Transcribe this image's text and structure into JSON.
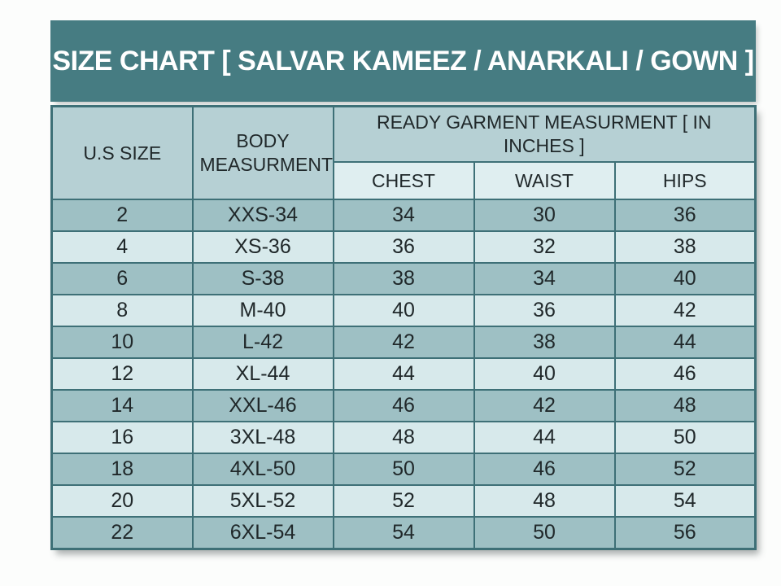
{
  "chart_data": {
    "type": "table",
    "title": "SIZE CHART [ SALVAR KAMEEZ / ANARKALI / GOWN ]",
    "header": {
      "col1": "U.S SIZE",
      "col2": "BODY MEASURMENT",
      "group": "READY GARMENT MEASURMENT [ IN INCHES ]",
      "group_cols": [
        "CHEST",
        "WAIST",
        "HIPS"
      ]
    },
    "rows": [
      [
        "2",
        "XXS-34",
        "34",
        "30",
        "36"
      ],
      [
        "4",
        "XS-36",
        "36",
        "32",
        "38"
      ],
      [
        "6",
        "S-38",
        "38",
        "34",
        "40"
      ],
      [
        "8",
        "M-40",
        "40",
        "36",
        "42"
      ],
      [
        "10",
        "L-42",
        "42",
        "38",
        "44"
      ],
      [
        "12",
        "XL-44",
        "44",
        "40",
        "46"
      ],
      [
        "14",
        "XXL-46",
        "46",
        "42",
        "48"
      ],
      [
        "16",
        "3XL-48",
        "48",
        "44",
        "50"
      ],
      [
        "18",
        "4XL-50",
        "50",
        "46",
        "52"
      ],
      [
        "20",
        "5XL-52",
        "52",
        "48",
        "54"
      ],
      [
        "22",
        "6XL-54",
        "54",
        "50",
        "56"
      ]
    ]
  },
  "colors": {
    "title_bar_bg": "#467c82",
    "title_text": "#ffffff",
    "header_cell_bg": "#b6d0d4",
    "sub_header_bg": "#dfeef0",
    "row_dark_bg": "#9ec0c4",
    "row_light_bg": "#d7e9eb",
    "cell_border": "#3e7077",
    "text": "#20282a",
    "page_bg": "#fcfdfc"
  }
}
